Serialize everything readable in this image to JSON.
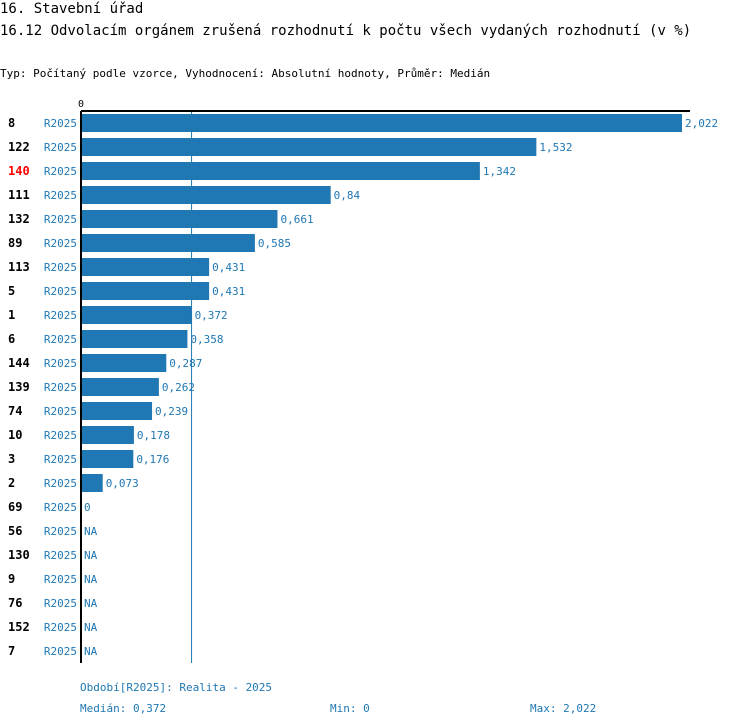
{
  "header": {
    "title": "16. Stavební úřad",
    "subtitle": "16.12 Odvolacím orgánem zrušená rozhodnutí k počtu všech vydaných rozhodnutí (v %)",
    "meta": "Typ: Počítaný podle vzorce, Vyhodnocení: Absolutní hodnoty, Průměr: Medián"
  },
  "colors": {
    "bar": "#1f77b4",
    "highlight": "#ff0000",
    "axis": "#000000"
  },
  "chart_data": {
    "type": "bar",
    "orientation": "horizontal",
    "axis_zero_label": "0",
    "xlim": [
      0,
      2.022
    ],
    "series_label": "R2025",
    "highlight_category": "140",
    "median": 0.372,
    "rows": [
      {
        "id": "8",
        "value": 2.022,
        "label": "2,022"
      },
      {
        "id": "122",
        "value": 1.532,
        "label": "1,532"
      },
      {
        "id": "140",
        "value": 1.342,
        "label": "1,342"
      },
      {
        "id": "111",
        "value": 0.84,
        "label": "0,84"
      },
      {
        "id": "132",
        "value": 0.661,
        "label": "0,661"
      },
      {
        "id": "89",
        "value": 0.585,
        "label": "0,585"
      },
      {
        "id": "113",
        "value": 0.431,
        "label": "0,431"
      },
      {
        "id": "5",
        "value": 0.431,
        "label": "0,431"
      },
      {
        "id": "1",
        "value": 0.372,
        "label": "0,372"
      },
      {
        "id": "6",
        "value": 0.358,
        "label": "0,358"
      },
      {
        "id": "144",
        "value": 0.287,
        "label": "0,287"
      },
      {
        "id": "139",
        "value": 0.262,
        "label": "0,262"
      },
      {
        "id": "74",
        "value": 0.239,
        "label": "0,239"
      },
      {
        "id": "10",
        "value": 0.178,
        "label": "0,178"
      },
      {
        "id": "3",
        "value": 0.176,
        "label": "0,176"
      },
      {
        "id": "2",
        "value": 0.073,
        "label": "0,073"
      },
      {
        "id": "69",
        "value": 0,
        "label": "0"
      },
      {
        "id": "56",
        "value": null,
        "label": "NA"
      },
      {
        "id": "130",
        "value": null,
        "label": "NA"
      },
      {
        "id": "9",
        "value": null,
        "label": "NA"
      },
      {
        "id": "76",
        "value": null,
        "label": "NA"
      },
      {
        "id": "152",
        "value": null,
        "label": "NA"
      },
      {
        "id": "7",
        "value": null,
        "label": "NA"
      }
    ]
  },
  "footer": {
    "period": "Období[R2025]: Realita - 2025",
    "median": "Medián: 0,372",
    "min": "Min: 0",
    "max": "Max: 2,022"
  }
}
